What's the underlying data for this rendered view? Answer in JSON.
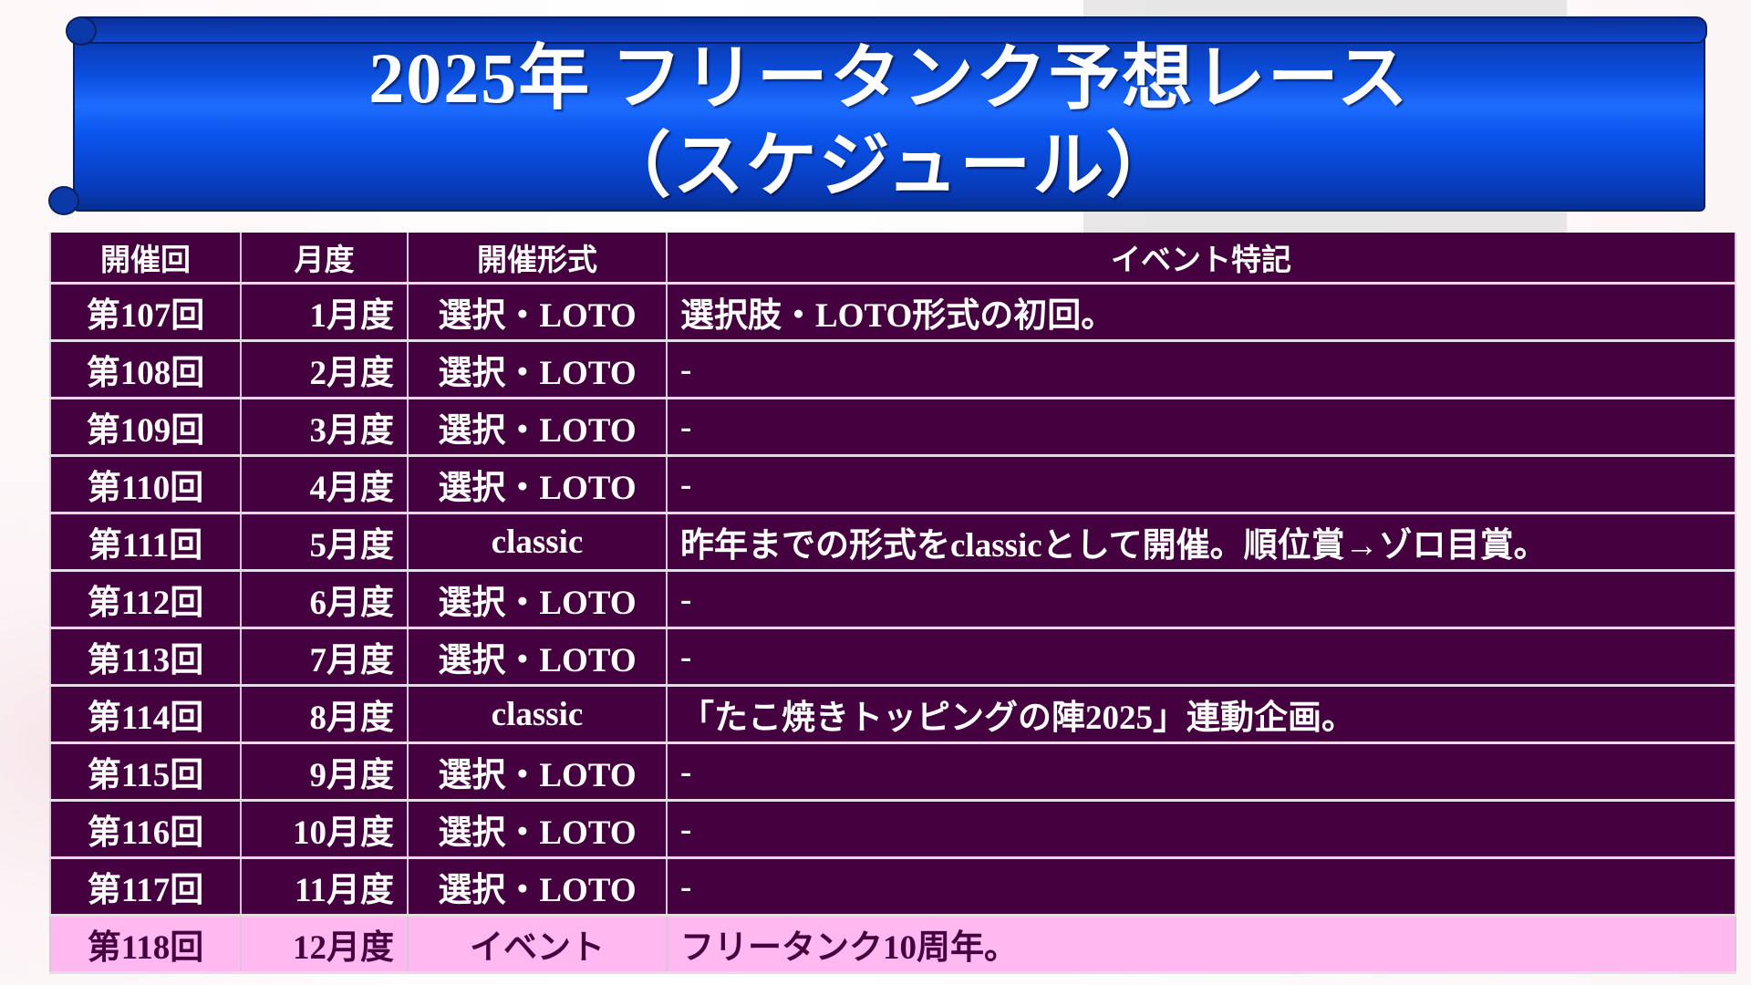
{
  "title": {
    "line1": "2025年 フリータンク予想レース",
    "line2": "（スケジュール）"
  },
  "colors": {
    "banner": "#0b4fe0",
    "row_bg": "#44003f",
    "highlight_bg": "#ffb8f0",
    "text": "#ffffff"
  },
  "table": {
    "headers": [
      "開催回",
      "月度",
      "開催形式",
      "イベント特記"
    ],
    "rows": [
      [
        "第107回",
        "1月度",
        "選択・LOTO",
        "選択肢・LOTO形式の初回。"
      ],
      [
        "第108回",
        "2月度",
        "選択・LOTO",
        "-"
      ],
      [
        "第109回",
        "3月度",
        "選択・LOTO",
        "-"
      ],
      [
        "第110回",
        "4月度",
        "選択・LOTO",
        "-"
      ],
      [
        "第111回",
        "5月度",
        "classic",
        "昨年までの形式をclassicとして開催。順位賞→ゾロ目賞。"
      ],
      [
        "第112回",
        "6月度",
        "選択・LOTO",
        "-"
      ],
      [
        "第113回",
        "7月度",
        "選択・LOTO",
        "-"
      ],
      [
        "第114回",
        "8月度",
        "classic",
        "「たこ焼きトッピングの陣2025」連動企画。"
      ],
      [
        "第115回",
        "9月度",
        "選択・LOTO",
        "-"
      ],
      [
        "第116回",
        "10月度",
        "選択・LOTO",
        "-"
      ],
      [
        "第117回",
        "11月度",
        "選択・LOTO",
        "-"
      ],
      [
        "第118回",
        "12月度",
        "イベント",
        "フリータンク10周年。"
      ]
    ]
  }
}
